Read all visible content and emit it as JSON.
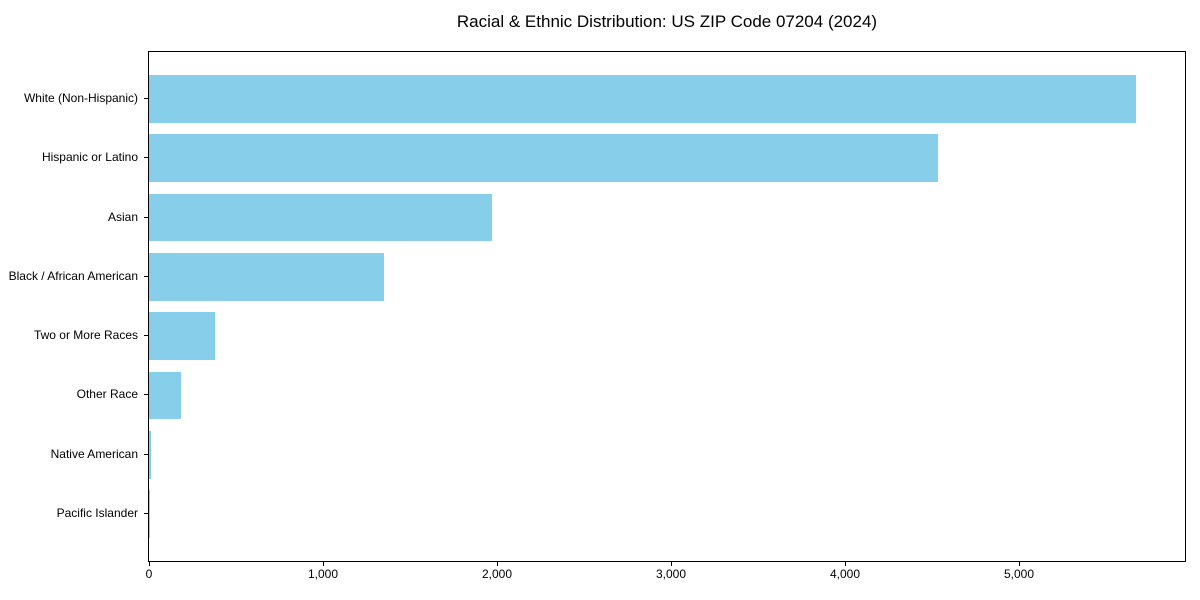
{
  "chart_data": {
    "type": "bar",
    "orientation": "horizontal",
    "title": "Racial & Ethnic Distribution: US ZIP Code 07204 (2024)",
    "categories": [
      "White (Non-Hispanic)",
      "Hispanic or Latino",
      "Asian",
      "Black / African American",
      "Two or More Races",
      "Other Race",
      "Native American",
      "Pacific Islander"
    ],
    "values": [
      5670,
      4535,
      1970,
      1353,
      377,
      182,
      10,
      4
    ],
    "x_ticks": [
      {
        "value": 0,
        "label": "0"
      },
      {
        "value": 1000,
        "label": "1,000"
      },
      {
        "value": 2000,
        "label": "2,000"
      },
      {
        "value": 3000,
        "label": "3,000"
      },
      {
        "value": 4000,
        "label": "4,000"
      },
      {
        "value": 5000,
        "label": "5,000"
      }
    ],
    "xlabel": "",
    "ylabel": "",
    "xlim": [
      0,
      5954
    ],
    "grid": false,
    "legend_position": "none",
    "bar_color": "#87CEEB",
    "axis_color": "#000000",
    "background_color": "#ffffff"
  }
}
